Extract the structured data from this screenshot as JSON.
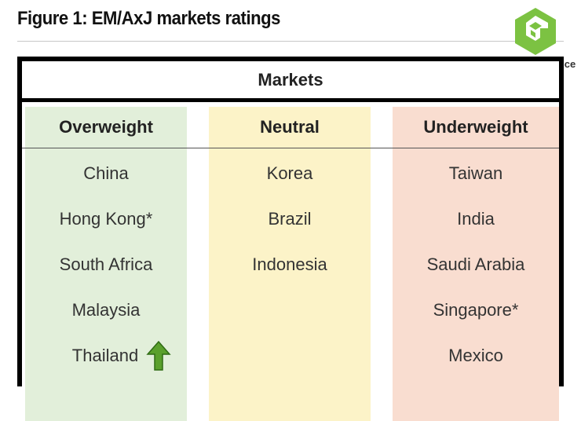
{
  "figure_title": "Figure 1: EM/AxJ markets ratings",
  "logo": {
    "icon": "green-cube-logo-icon",
    "text": "Global Finance",
    "accent": "#7cc242"
  },
  "table": {
    "header": "Markets",
    "columns": [
      {
        "title": "Overweight",
        "bg": "#e2efda",
        "items": [
          "China",
          "Hong Kong*",
          "South Africa",
          "Malaysia",
          "Thailand"
        ]
      },
      {
        "title": "Neutral",
        "bg": "#fcf3c8",
        "items": [
          "Korea",
          "Brazil",
          "Indonesia"
        ]
      },
      {
        "title": "Underweight",
        "bg": "#f9ddd0",
        "items": [
          "Taiwan",
          "India",
          "Saudi Arabia",
          "Singapore*",
          "Mexico"
        ]
      }
    ],
    "upgrade_marker": {
      "item": "Thailand",
      "icon": "up-arrow-icon",
      "color": "#5aa02c"
    }
  }
}
